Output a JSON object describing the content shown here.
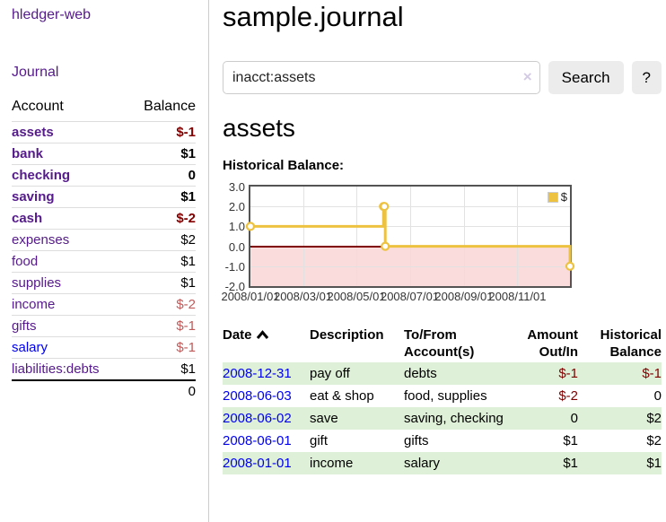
{
  "colors": {
    "link_visited": "#551a8b",
    "link_unvisited": "#0000ee",
    "negative": "#800000",
    "negative_muted": "#c05a5a",
    "row_stripe_green": "#dff0d8",
    "chart_line_gold": "#edc240",
    "chart_negative_fill": "#fbdcdc",
    "zero_line": "#800000",
    "button_bg": "#ececec"
  },
  "sidebar": {
    "brand": "hledger-web",
    "nav": [
      {
        "label": "Journal"
      }
    ],
    "accounts_table": {
      "headers": [
        "Account",
        "Balance"
      ],
      "rows": [
        {
          "account": "assets",
          "balance": "$-1",
          "indent": 1,
          "bold": true,
          "balance_class": "neg",
          "link": "visited"
        },
        {
          "account": "bank",
          "balance": "$1",
          "indent": 2,
          "bold": true,
          "balance_class": "",
          "link": "visited"
        },
        {
          "account": "checking",
          "balance": "0",
          "indent": 3,
          "bold": true,
          "balance_class": "",
          "link": "visited"
        },
        {
          "account": "saving",
          "balance": "$1",
          "indent": 3,
          "bold": true,
          "balance_class": "",
          "link": "visited"
        },
        {
          "account": "cash",
          "balance": "$-2",
          "indent": 2,
          "bold": true,
          "balance_class": "neg",
          "link": "visited"
        },
        {
          "account": "expenses",
          "balance": "$2",
          "indent": 1,
          "bold": false,
          "balance_class": "",
          "link": "visited"
        },
        {
          "account": "food",
          "balance": "$1",
          "indent": 2,
          "bold": false,
          "balance_class": "",
          "link": "visited"
        },
        {
          "account": "supplies",
          "balance": "$1",
          "indent": 2,
          "bold": false,
          "balance_class": "",
          "link": "visited"
        },
        {
          "account": "income",
          "balance": "$-2",
          "indent": 1,
          "bold": false,
          "balance_class": "neg-muted",
          "link": "visited"
        },
        {
          "account": "gifts",
          "balance": "$-1",
          "indent": 2,
          "bold": false,
          "balance_class": "neg-muted",
          "link": "visited"
        },
        {
          "account": "salary",
          "balance": "$-1",
          "indent": 2,
          "bold": false,
          "balance_class": "neg-muted",
          "link": "new"
        },
        {
          "account": "liabilities:debts",
          "balance": "$1",
          "indent": 1,
          "bold": false,
          "balance_class": "",
          "link": "visited"
        }
      ],
      "total": "0"
    }
  },
  "header": {
    "title": "sample.journal"
  },
  "search": {
    "value": "inacct:assets",
    "clear_icon": "×",
    "search_label": "Search",
    "help_label": "?"
  },
  "main": {
    "account_heading": "assets",
    "chart_heading": "Historical Balance:"
  },
  "chart_data": {
    "type": "line",
    "title": "Historical Balance",
    "step": true,
    "legend": [
      {
        "label": "$",
        "color": "#edc240"
      }
    ],
    "legend_position": "top-right",
    "grid": true,
    "ylim": [
      -2.0,
      3.0
    ],
    "y_ticks": [
      {
        "value": 3.0,
        "label": "3.0"
      },
      {
        "value": 2.0,
        "label": "2.0"
      },
      {
        "value": 1.0,
        "label": "1.0"
      },
      {
        "value": 0.0,
        "label": "0.0"
      },
      {
        "value": -1.0,
        "label": "-1.0"
      },
      {
        "value": -2.0,
        "label": "-2.0"
      }
    ],
    "x_range_days": [
      0,
      365
    ],
    "x_ticks": [
      {
        "day": 0,
        "label": "2008/01/01"
      },
      {
        "day": 60,
        "label": "2008/03/01"
      },
      {
        "day": 121,
        "label": "2008/05/01"
      },
      {
        "day": 182,
        "label": "2008/07/01"
      },
      {
        "day": 244,
        "label": "2008/09/01"
      },
      {
        "day": 305,
        "label": "2008/11/01"
      }
    ],
    "series": [
      {
        "name": "$",
        "points": [
          {
            "date": "2008-01-01",
            "day": 0,
            "value": 1
          },
          {
            "date": "2008-06-01",
            "day": 152,
            "value": 2
          },
          {
            "date": "2008-06-02",
            "day": 153,
            "value": 2
          },
          {
            "date": "2008-06-03",
            "day": 154,
            "value": 0
          },
          {
            "date": "2008-12-31",
            "day": 365,
            "value": -1
          }
        ]
      }
    ],
    "negative_region_shaded": true,
    "zero_line": true
  },
  "table": {
    "headers": [
      {
        "label": "Date",
        "sort": "asc",
        "align": "left"
      },
      {
        "label": "Description",
        "align": "left"
      },
      {
        "label": "To/From Account(s)",
        "align": "left"
      },
      {
        "label": "Amount Out/In",
        "align": "right"
      },
      {
        "label": "Historical Balance",
        "align": "right"
      }
    ],
    "rows": [
      {
        "date": "2008-12-31",
        "description": "pay off",
        "accounts": "debts",
        "amount": "$-1",
        "amount_neg": true,
        "balance": "$-1",
        "balance_neg": true
      },
      {
        "date": "2008-06-03",
        "description": "eat & shop",
        "accounts": "food, supplies",
        "amount": "$-2",
        "amount_neg": true,
        "balance": "0",
        "balance_neg": false
      },
      {
        "date": "2008-06-02",
        "description": "save",
        "accounts": "saving, checking",
        "amount": "0",
        "amount_neg": false,
        "balance": "$2",
        "balance_neg": false
      },
      {
        "date": "2008-06-01",
        "description": "gift",
        "accounts": "gifts",
        "amount": "$1",
        "amount_neg": false,
        "balance": "$2",
        "balance_neg": false
      },
      {
        "date": "2008-01-01",
        "description": "income",
        "accounts": "salary",
        "amount": "$1",
        "amount_neg": false,
        "balance": "$1",
        "balance_neg": false
      }
    ]
  }
}
